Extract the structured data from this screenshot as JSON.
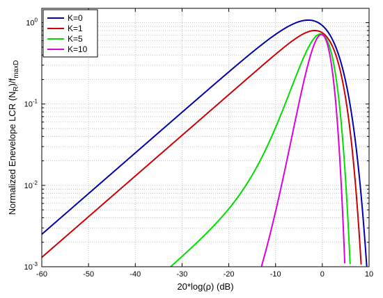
{
  "chart_data": {
    "type": "line",
    "xlabel": "20*log(ρ) (dB)",
    "ylabel_main": "Normalized Enevelope LCR (N",
    "ylabel_sub1": "R",
    "ylabel_mid": ")/f",
    "ylabel_sub2": "maxD",
    "xlim": [
      -60,
      10
    ],
    "ylim": [
      0.001,
      1.5
    ],
    "yscale": "log",
    "grid": true,
    "legend_position": "top-left",
    "xticks": [
      -60,
      -50,
      -40,
      -30,
      -20,
      -10,
      0,
      10
    ],
    "xtick_labels": [
      "-60",
      "-50",
      "-40",
      "-30",
      "-20",
      "-10",
      "0",
      "10"
    ],
    "yticks": [
      {
        "base": "10",
        "exp": "-3",
        "value": 0.001
      },
      {
        "base": "10",
        "exp": "-2",
        "value": 0.01
      },
      {
        "base": "10",
        "exp": "-1",
        "value": 0.1
      },
      {
        "base": "10",
        "exp": "0",
        "value": 1
      }
    ],
    "series": [
      {
        "name": "K=0",
        "color": "#0000aa",
        "K": 0
      },
      {
        "name": "K=1",
        "color": "#cc0000",
        "K": 1
      },
      {
        "name": "K=5",
        "color": "#00dd00",
        "K": 5
      },
      {
        "name": "K=10",
        "color": "#dd00dd",
        "K": 10
      }
    ]
  }
}
